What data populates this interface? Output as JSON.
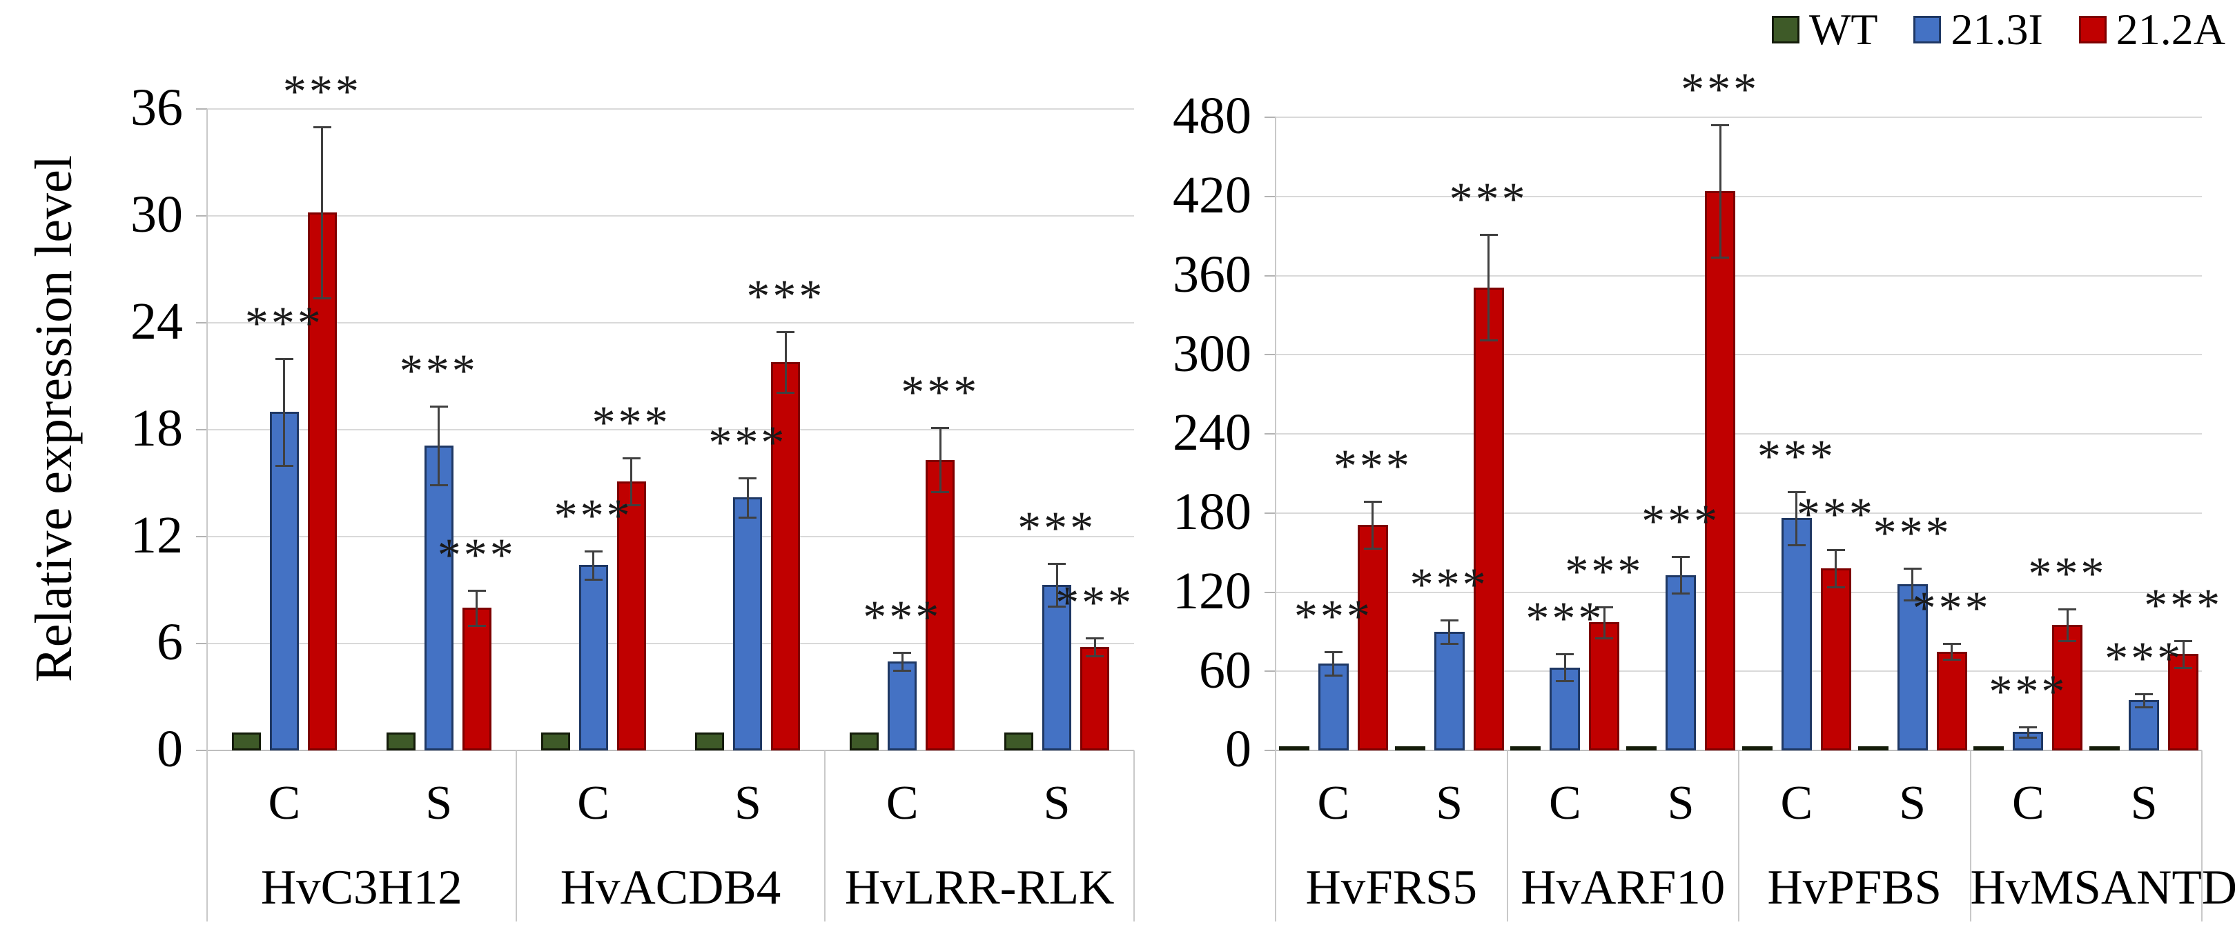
{
  "legend": {
    "items": [
      {
        "label": "WT",
        "color": "#3E5A28",
        "border": "#141C0A"
      },
      {
        "label": "21.3I",
        "color": "#4472C4",
        "border": "#1F3864"
      },
      {
        "label": "21.2A",
        "color": "#C00000",
        "border": "#7E0000"
      }
    ]
  },
  "sig_symbol": "***",
  "colors": {
    "gridline": "#d9d9d9",
    "axis": "#bfbfbf",
    "error_bar": "#404040",
    "wt_green": "#3E5A28",
    "line_21_3I_blue": "#4472C4",
    "line_21_2A_red": "#C00000"
  },
  "chart_data": [
    {
      "type": "bar",
      "panel": "left",
      "ylabel": "Relative expression level",
      "ylim": [
        0,
        36
      ],
      "ytick_step": 6,
      "yticks": [
        0,
        6,
        12,
        18,
        24,
        30,
        36
      ],
      "grid": true,
      "legend_position": "top-right",
      "series_names": [
        "WT",
        "21.3I",
        "21.2A"
      ],
      "groups": [
        {
          "gene": "HvC3H12",
          "conditions": [
            {
              "label": "C",
              "values": [
                1.0,
                19.0,
                30.2
              ],
              "errors": [
                0,
                3.0,
                4.8
              ],
              "sig": [
                "",
                "***",
                "***"
              ]
            },
            {
              "label": "S",
              "values": [
                1.0,
                17.1,
                8.0
              ],
              "errors": [
                0,
                2.2,
                1.0
              ],
              "sig": [
                "",
                "***",
                "***"
              ]
            }
          ]
        },
        {
          "gene": "HvACDB4",
          "conditions": [
            {
              "label": "C",
              "values": [
                1.0,
                10.4,
                15.1
              ],
              "errors": [
                0,
                0.8,
                1.3
              ],
              "sig": [
                "",
                "***",
                "***"
              ]
            },
            {
              "label": "S",
              "values": [
                1.0,
                14.2,
                21.8
              ],
              "errors": [
                0,
                1.1,
                1.7
              ],
              "sig": [
                "",
                "***",
                "***"
              ]
            }
          ]
        },
        {
          "gene": "HvLRR-RLK",
          "conditions": [
            {
              "label": "C",
              "values": [
                1.0,
                5.0,
                16.3
              ],
              "errors": [
                0,
                0.5,
                1.8
              ],
              "sig": [
                "",
                "***",
                "***"
              ]
            },
            {
              "label": "S",
              "values": [
                1.0,
                9.3,
                5.8
              ],
              "errors": [
                0,
                1.2,
                0.5
              ],
              "sig": [
                "",
                "***",
                "***"
              ]
            }
          ]
        }
      ]
    },
    {
      "type": "bar",
      "panel": "right",
      "ylabel": "",
      "ylim": [
        0,
        480
      ],
      "ytick_step": 60,
      "yticks": [
        0,
        60,
        120,
        180,
        240,
        300,
        360,
        420,
        480
      ],
      "grid": true,
      "legend_position": "top-right",
      "series_names": [
        "WT",
        "21.3I",
        "21.2A"
      ],
      "groups": [
        {
          "gene": "HvFRS5",
          "conditions": [
            {
              "label": "C",
              "values": [
                3,
                66,
                171
              ],
              "errors": [
                0,
                9,
                18
              ],
              "sig": [
                "",
                "***",
                "***"
              ]
            },
            {
              "label": "S",
              "values": [
                3,
                90,
                351
              ],
              "errors": [
                0,
                9,
                40
              ],
              "sig": [
                "",
                "***",
                "***"
              ]
            }
          ]
        },
        {
          "gene": "HvARF10",
          "conditions": [
            {
              "label": "C",
              "values": [
                3,
                63,
                97
              ],
              "errors": [
                0,
                10,
                12
              ],
              "sig": [
                "",
                "***",
                "***"
              ]
            },
            {
              "label": "S",
              "values": [
                3,
                133,
                424
              ],
              "errors": [
                0,
                14,
                50
              ],
              "sig": [
                "",
                "***",
                "***"
              ]
            }
          ]
        },
        {
          "gene": "HvPFBS",
          "conditions": [
            {
              "label": "C",
              "values": [
                3,
                176,
                138
              ],
              "errors": [
                0,
                20,
                14
              ],
              "sig": [
                "",
                "***",
                "***"
              ]
            },
            {
              "label": "S",
              "values": [
                3,
                126,
                75
              ],
              "errors": [
                0,
                12,
                6
              ],
              "sig": [
                "",
                "***",
                "***"
              ]
            }
          ]
        },
        {
          "gene": "HvMSANTD",
          "conditions": [
            {
              "label": "C",
              "values": [
                3,
                14,
                95
              ],
              "errors": [
                0,
                4,
                12
              ],
              "sig": [
                "",
                "***",
                "***"
              ]
            },
            {
              "label": "S",
              "values": [
                3,
                38,
                73
              ],
              "errors": [
                0,
                5,
                10
              ],
              "sig": [
                "",
                "***",
                "***"
              ]
            }
          ]
        }
      ]
    }
  ]
}
